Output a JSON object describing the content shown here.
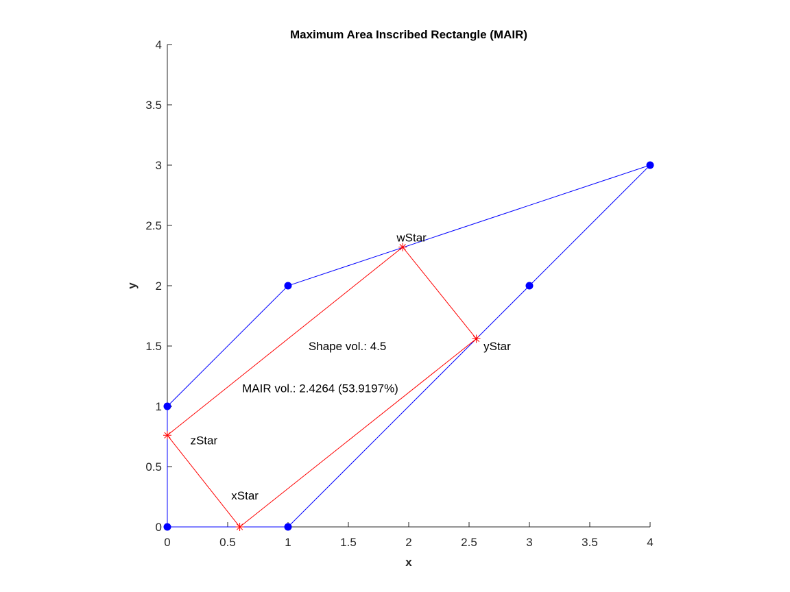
{
  "chart_data": {
    "type": "line",
    "title": "Maximum Area Inscribed Rectangle (MAIR)",
    "xlabel": "x",
    "ylabel": "y",
    "xlim": [
      0,
      4
    ],
    "ylim": [
      0,
      4
    ],
    "xticks": [
      0,
      0.5,
      1,
      1.5,
      2,
      2.5,
      3,
      3.5,
      4
    ],
    "xtick_labels": [
      "0",
      "0.5",
      "1",
      "1.5",
      "2",
      "2.5",
      "3",
      "3.5",
      "4"
    ],
    "yticks": [
      0,
      0.5,
      1,
      1.5,
      2,
      2.5,
      3,
      3.5,
      4
    ],
    "ytick_labels": [
      "0",
      "0.5",
      "1",
      "1.5",
      "2",
      "2.5",
      "3",
      "3.5",
      "4"
    ],
    "grid": false,
    "series": [
      {
        "color": "#0000ff",
        "marker": "filled-circle",
        "closed": true,
        "points": [
          [
            0,
            0
          ],
          [
            1,
            0
          ],
          [
            3,
            2
          ],
          [
            4,
            3
          ],
          [
            1,
            2
          ],
          [
            0,
            1
          ]
        ]
      },
      {
        "color": "#ff0000",
        "marker": "asterisk",
        "closed": true,
        "points": [
          [
            0.6,
            0
          ],
          [
            2.56,
            1.56
          ],
          [
            1.95,
            2.32
          ],
          [
            0,
            0.76
          ]
        ]
      }
    ],
    "point_labels": [
      {
        "text": "xStar",
        "x": 0.53,
        "y": 0.26
      },
      {
        "text": "yStar",
        "x": 2.62,
        "y": 1.5
      },
      {
        "text": "wStar",
        "x": 1.9,
        "y": 2.4
      },
      {
        "text": "zStar",
        "x": 0.19,
        "y": 0.72
      }
    ],
    "annotations": [
      {
        "text": "Shape vol.: 4.5",
        "x": 1.17,
        "y": 1.5
      },
      {
        "text": "MAIR vol.: 2.4264 (53.9197%)",
        "x": 0.62,
        "y": 1.15
      }
    ]
  }
}
